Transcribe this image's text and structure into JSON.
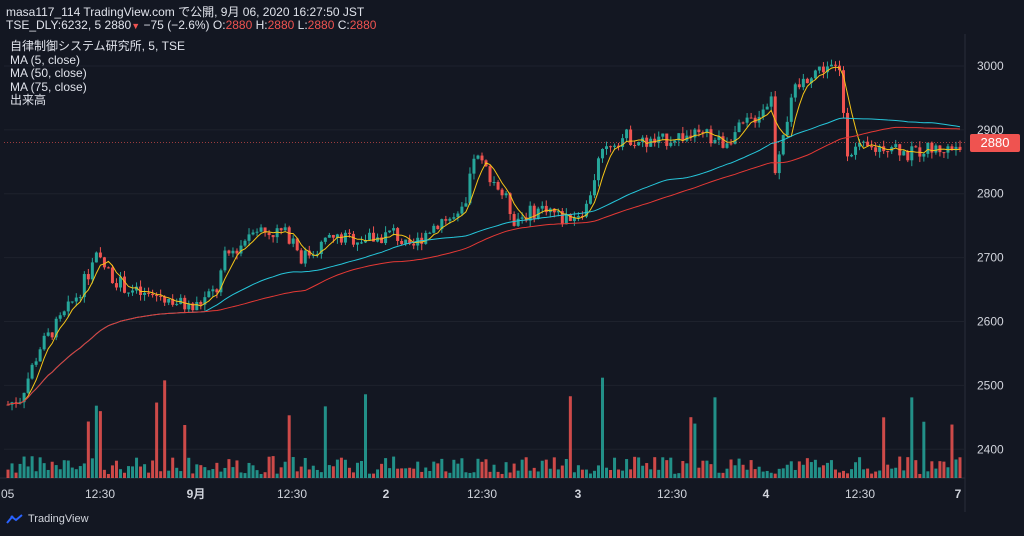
{
  "header": {
    "line1": "masa117_114 TradingView.com で公開, 9月 06, 2020 16:27:50 JST",
    "symbol": "TSE_DLY:6232, 5",
    "last": "2880",
    "change": "−75 (−2.6%)",
    "o_label": "O:",
    "o": "2880",
    "h_label": "H:",
    "h": "2880",
    "l_label": "L:",
    "l": "2880",
    "c_label": "C:",
    "c": "2880"
  },
  "legend": {
    "title": "自律制御システム研究所, 5, TSE",
    "ma5": "MA (5, close)",
    "ma50": "MA (50, close)",
    "ma75": "MA (75, close)",
    "volume": "出来高"
  },
  "price_tag": "2880",
  "branding": "TradingView",
  "colors": {
    "background": "#131722",
    "up": "#26a69a",
    "down": "#ef5350",
    "ma5": "#f5c518",
    "ma50": "#26c6da",
    "ma75": "#e53935"
  },
  "chart_data": {
    "type": "candlestick",
    "interval": "5",
    "ylim": [
      2355,
      3050
    ],
    "y_ticks": [
      2400,
      2500,
      2600,
      2700,
      2800,
      2900,
      3000
    ],
    "x_ticks": [
      ":05",
      "12:30",
      "9月",
      "12:30",
      "2",
      "12:30",
      "3",
      "12:30",
      "4",
      "12:30",
      "7"
    ],
    "ohlc_anchors": [
      [
        0,
        2470
      ],
      [
        3,
        2480
      ],
      [
        8,
        2560
      ],
      [
        14,
        2610
      ],
      [
        18,
        2650
      ],
      [
        22,
        2700
      ],
      [
        26,
        2670
      ],
      [
        30,
        2650
      ],
      [
        34,
        2640
      ],
      [
        38,
        2640
      ],
      [
        42,
        2630
      ],
      [
        46,
        2620
      ],
      [
        50,
        2640
      ],
      [
        52,
        2650
      ],
      [
        54,
        2700
      ],
      [
        58,
        2720
      ],
      [
        61,
        2750
      ],
      [
        64,
        2740
      ],
      [
        68,
        2740
      ],
      [
        71,
        2730
      ],
      [
        73,
        2700
      ],
      [
        76,
        2710
      ],
      [
        80,
        2730
      ],
      [
        86,
        2730
      ],
      [
        92,
        2730
      ],
      [
        96,
        2740
      ],
      [
        100,
        2710
      ],
      [
        104,
        2740
      ],
      [
        108,
        2760
      ],
      [
        112,
        2760
      ],
      [
        114,
        2780
      ],
      [
        116,
        2860
      ],
      [
        120,
        2830
      ],
      [
        124,
        2790
      ],
      [
        126,
        2760
      ],
      [
        130,
        2770
      ],
      [
        134,
        2780
      ],
      [
        138,
        2760
      ],
      [
        142,
        2770
      ],
      [
        144,
        2780
      ],
      [
        147,
        2850
      ],
      [
        150,
        2880
      ],
      [
        154,
        2890
      ],
      [
        158,
        2880
      ],
      [
        162,
        2880
      ],
      [
        166,
        2890
      ],
      [
        170,
        2890
      ],
      [
        174,
        2890
      ],
      [
        178,
        2880
      ],
      [
        182,
        2900
      ],
      [
        186,
        2920
      ],
      [
        190,
        2950
      ],
      [
        191,
        2840
      ],
      [
        193,
        2900
      ],
      [
        196,
        2960
      ],
      [
        200,
        2990
      ],
      [
        204,
        3000
      ],
      [
        207,
        2990
      ],
      [
        209,
        2870
      ],
      [
        212,
        2870
      ],
      [
        216,
        2870
      ],
      [
        220,
        2880
      ],
      [
        224,
        2860
      ],
      [
        228,
        2870
      ],
      [
        232,
        2870
      ],
      [
        235,
        2870
      ],
      [
        237,
        2880
      ]
    ],
    "volume_scale": [
      0,
      100000
    ],
    "series": [
      {
        "name": "MA (5, close)"
      },
      {
        "name": "MA (50, close)"
      },
      {
        "name": "MA (75, close)"
      },
      {
        "name": "出来高"
      }
    ]
  }
}
